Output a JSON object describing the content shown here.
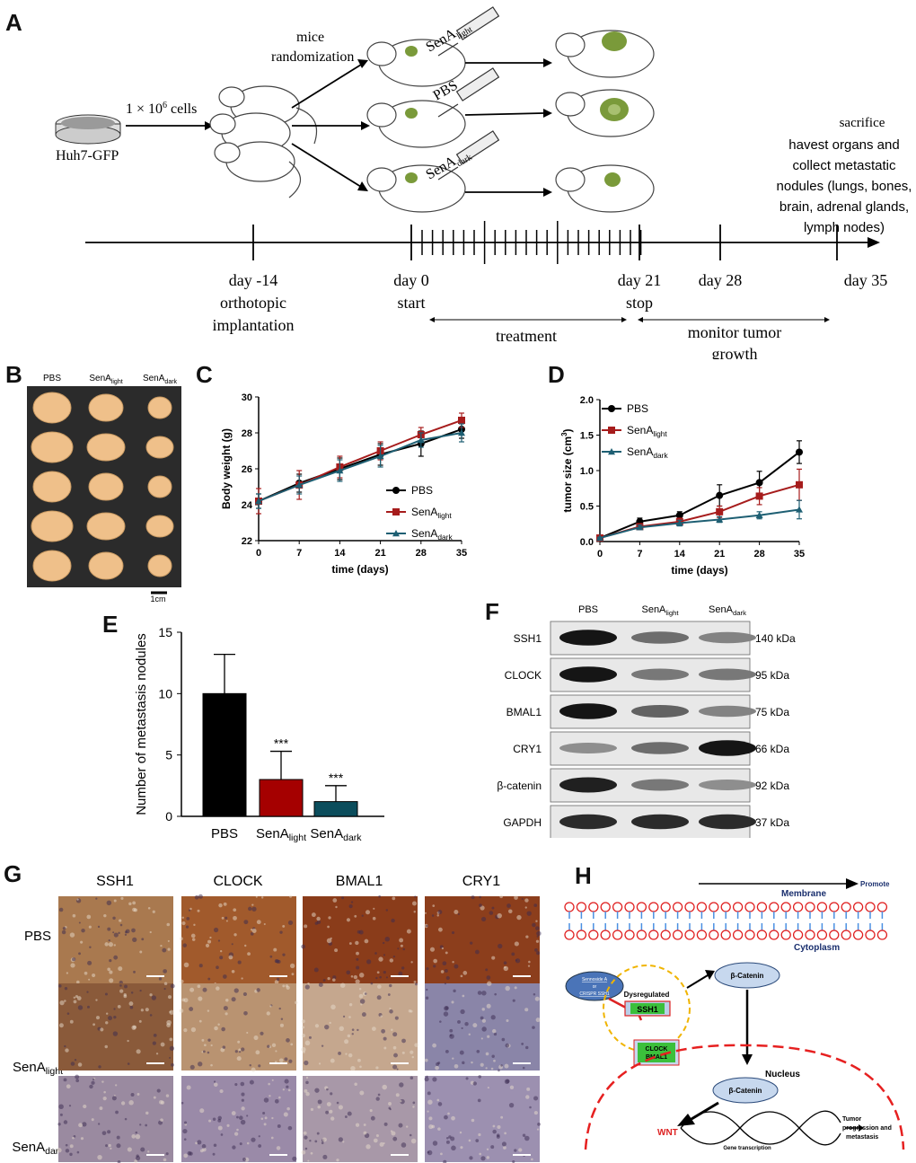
{
  "panel_labels": {
    "a": "A",
    "b": "B",
    "c": "C",
    "d": "D",
    "e": "E",
    "f": "F",
    "g": "G",
    "h": "H"
  },
  "panel_a": {
    "cells_label": "Huh7-GFP",
    "cell_count": "1 × 10",
    "cell_count_exp": "6",
    "cell_count_unit": " cells",
    "randomization_line1": "mice",
    "randomization_line2": "randomization",
    "group_light": "SenA",
    "group_light_sub": "light",
    "group_pbs": "PBS",
    "group_dark": "SenA",
    "group_dark_sub": "dark",
    "sacrifice_lines": [
      "sacrifice",
      "havest organs and",
      "collect metastatic",
      "nodules (lungs, bones,",
      "brain, adrenal glands,",
      "lymph nodes)"
    ],
    "timeline": {
      "d_minus14": "day -14",
      "d_minus14_sub1": "orthotopic",
      "d_minus14_sub2": "implantation",
      "d0": "day 0",
      "d0_sub": "start",
      "d21": "day 21",
      "d21_sub": "stop",
      "d28": "day 28",
      "d35": "day 35",
      "treatment": "treatment",
      "monitor1": "monitor tumor",
      "monitor2": "growth"
    }
  },
  "panel_b": {
    "col_labels": [
      {
        "main": "PBS",
        "sub": ""
      },
      {
        "main": "SenA",
        "sub": "light"
      },
      {
        "main": "SenA",
        "sub": "dark"
      }
    ],
    "scale_label": "1cm"
  },
  "chart_data": [
    {
      "id": "C",
      "type": "line",
      "xlabel": "time (days)",
      "ylabel": "Body weight (g)",
      "x": [
        0,
        7,
        14,
        21,
        28,
        35
      ],
      "xlim": [
        0,
        35
      ],
      "ylim": [
        22,
        30
      ],
      "yticks": [
        22,
        24,
        26,
        28,
        30
      ],
      "legend_position": "bottom-right",
      "series": [
        {
          "name": "PBS",
          "sub": "",
          "color": "#000000",
          "marker": "circle",
          "values": [
            24.2,
            25.2,
            26.0,
            26.8,
            27.4,
            28.2
          ],
          "err": [
            0.4,
            0.5,
            0.6,
            0.6,
            0.7,
            0.5
          ]
        },
        {
          "name": "SenA",
          "sub": "light",
          "color": "#a61c1c",
          "marker": "square",
          "values": [
            24.2,
            25.1,
            26.1,
            27.0,
            27.9,
            28.7
          ],
          "err": [
            0.7,
            0.8,
            0.6,
            0.5,
            0.4,
            0.4
          ]
        },
        {
          "name": "SenA",
          "sub": "dark",
          "color": "#1e5f73",
          "marker": "triangle",
          "values": [
            24.2,
            25.1,
            25.9,
            26.7,
            27.6,
            28.0
          ],
          "err": [
            0.4,
            0.5,
            0.6,
            0.6,
            0.4,
            0.5
          ]
        }
      ]
    },
    {
      "id": "D",
      "type": "line",
      "xlabel": "time (days)",
      "ylabel": "tumor size (cm",
      "ylabel_sup": "3",
      "ylabel_end": ")",
      "x": [
        0,
        7,
        14,
        21,
        28,
        35
      ],
      "xlim": [
        0,
        35
      ],
      "ylim": [
        0,
        2.0
      ],
      "yticks": [
        0.0,
        0.5,
        1.0,
        1.5,
        2.0
      ],
      "legend_position": "top-left",
      "series": [
        {
          "name": "PBS",
          "sub": "",
          "color": "#000000",
          "marker": "circle",
          "values": [
            0.05,
            0.28,
            0.37,
            0.65,
            0.83,
            1.26
          ],
          "err": [
            0.01,
            0.05,
            0.05,
            0.15,
            0.16,
            0.16
          ]
        },
        {
          "name": "SenA",
          "sub": "light",
          "color": "#a61c1c",
          "marker": "square",
          "values": [
            0.05,
            0.21,
            0.28,
            0.42,
            0.64,
            0.8
          ],
          "err": [
            0.01,
            0.03,
            0.05,
            0.08,
            0.12,
            0.22
          ]
        },
        {
          "name": "SenA",
          "sub": "dark",
          "color": "#1e5f73",
          "marker": "triangle",
          "values": [
            0.05,
            0.2,
            0.26,
            0.31,
            0.37,
            0.45
          ],
          "err": [
            0.01,
            0.03,
            0.04,
            0.04,
            0.05,
            0.13
          ]
        }
      ]
    },
    {
      "id": "E",
      "type": "bar",
      "ylabel": "Number of metastasis nodules",
      "ylim": [
        0,
        15
      ],
      "yticks": [
        0,
        5,
        10,
        15
      ],
      "categories": [
        {
          "main": "PBS",
          "sub": ""
        },
        {
          "main": "SenA",
          "sub": "light"
        },
        {
          "main": "SenA",
          "sub": "dark"
        }
      ],
      "values": [
        10,
        3,
        1.2
      ],
      "err": [
        3.2,
        2.3,
        1.3
      ],
      "colors": [
        "#000000",
        "#a50000",
        "#0b4d5c"
      ],
      "significance": [
        "",
        "***",
        "***"
      ]
    }
  ],
  "panel_f": {
    "lane_labels": [
      {
        "main": "PBS",
        "sub": ""
      },
      {
        "main": "SenA",
        "sub": "light"
      },
      {
        "main": "SenA",
        "sub": "dark"
      }
    ],
    "rows": [
      {
        "protein": "SSH1",
        "kda": "140 kDa",
        "intensity": [
          0.95,
          0.55,
          0.45
        ]
      },
      {
        "protein": "CLOCK",
        "kda": "95 kDa",
        "intensity": [
          0.95,
          0.5,
          0.5
        ]
      },
      {
        "protein": "BMAL1",
        "kda": "75 kDa",
        "intensity": [
          0.95,
          0.6,
          0.45
        ]
      },
      {
        "protein": "CRY1",
        "kda": "66 kDa",
        "intensity": [
          0.4,
          0.55,
          0.95
        ]
      },
      {
        "protein": "β-catenin",
        "kda": "92 kDa",
        "intensity": [
          0.9,
          0.5,
          0.4
        ]
      },
      {
        "protein": "GAPDH",
        "kda": "37 kDa",
        "intensity": [
          0.85,
          0.85,
          0.85
        ]
      }
    ]
  },
  "panel_g": {
    "col_labels": [
      "SSH1",
      "CLOCK",
      "BMAL1",
      "CRY1"
    ],
    "row_labels": [
      {
        "main": "PBS",
        "sub": ""
      },
      {
        "main": "SenA",
        "sub": "light"
      },
      {
        "main": "SenA",
        "sub": "dark"
      }
    ],
    "stain": [
      [
        "#a9794f",
        "#a15a2c",
        "#8a3c1a",
        "#8c3e1c"
      ],
      [
        "#8a5a3a",
        "#b99371",
        "#c5a78e",
        "#8a85a8"
      ],
      [
        "#9a8aa0",
        "#9a8aa8",
        "#a898a8",
        "#9c90b0"
      ]
    ]
  },
  "panel_h": {
    "promote": "Promote",
    "membrane": "Membrane",
    "cytoplasm": "Cytoplasm",
    "sennoside_line1": "Sennoside A",
    "sennoside_line2": "or",
    "sennoside_line3": "CRISPR SSH1",
    "dysregulated": "Dysregulated",
    "ssh1": "SSH1",
    "beta_catenin": "β-Catenin",
    "clock": "CLOCK",
    "bmal1": "BMAL1",
    "nucleus": "Nucleus",
    "beta_catenin_nuc": "β-Catenin",
    "wnt": "WNT",
    "gene_transcription": "Gene transcription",
    "tumor_line1": "Tumor",
    "tumor_line2": "progression and",
    "tumor_line3": "metastasis"
  }
}
